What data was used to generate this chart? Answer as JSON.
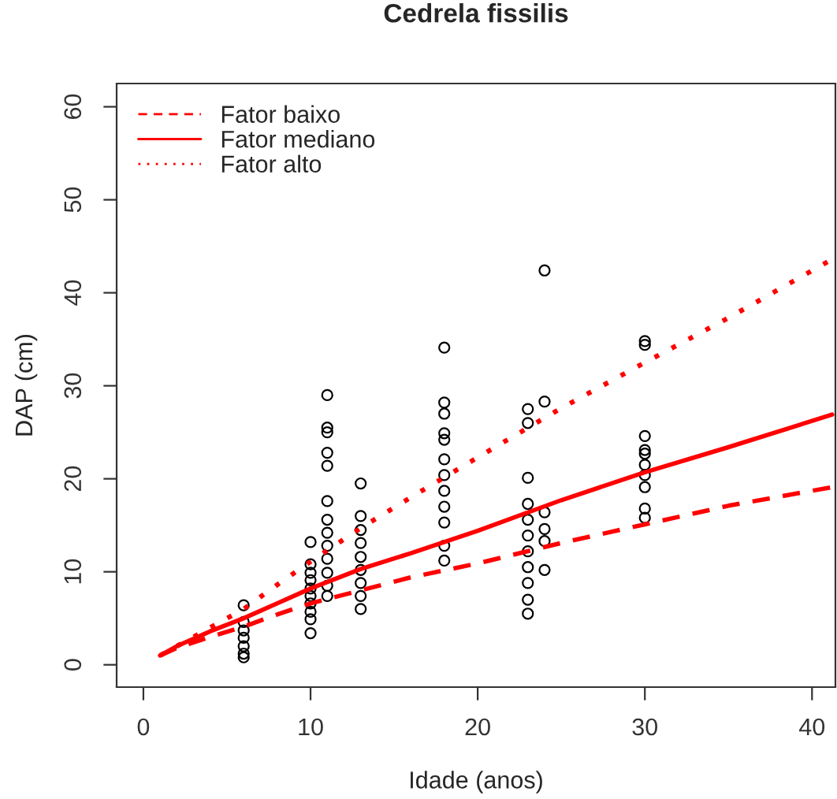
{
  "chart_data": {
    "type": "scatter",
    "title": "Cedrela fissilis",
    "xlabel": "Idade (anos)",
    "ylabel": "DAP (cm)",
    "xlim": [
      -1.6,
      41.4
    ],
    "ylim": [
      -2.4,
      62.5
    ],
    "xticks": [
      0,
      10,
      20,
      30,
      40
    ],
    "yticks": [
      0,
      10,
      20,
      30,
      40,
      50,
      60
    ],
    "grid": false,
    "legend": "top left",
    "marker": "circle",
    "series": [
      {
        "color": "#000000",
        "x": [
          6,
          6,
          6,
          6,
          6,
          6,
          6,
          10,
          10,
          10,
          10,
          10,
          10,
          10,
          10,
          10,
          10,
          11,
          11,
          11,
          11,
          11,
          11,
          11,
          11,
          11,
          11,
          11,
          11,
          11,
          13,
          13,
          13,
          13,
          13,
          13,
          13,
          13,
          13,
          18,
          18,
          18,
          18,
          18,
          18,
          18,
          18,
          18,
          18,
          18,
          18,
          23,
          23,
          23,
          23,
          23,
          23,
          23,
          23,
          23,
          23,
          23,
          24,
          24,
          24,
          24,
          24,
          24,
          30,
          30,
          30,
          30,
          30,
          30,
          30,
          30,
          30,
          30
        ],
        "values": [
          6.4,
          4.6,
          3.7,
          2.9,
          2.0,
          1.2,
          0.8,
          13.2,
          10.8,
          9.9,
          9.1,
          8.2,
          7.4,
          6.6,
          5.7,
          4.9,
          3.4,
          29.0,
          25.5,
          25.0,
          22.8,
          21.4,
          17.6,
          15.6,
          14.2,
          12.8,
          11.4,
          9.9,
          8.5,
          7.4,
          19.5,
          16.0,
          14.5,
          13.1,
          11.6,
          10.2,
          8.8,
          7.4,
          6.0,
          34.1,
          28.2,
          27.0,
          24.9,
          24.2,
          22.1,
          20.4,
          18.7,
          17.0,
          15.3,
          12.8,
          11.2,
          27.5,
          26.0,
          20.1,
          17.3,
          15.6,
          13.9,
          12.2,
          10.5,
          8.8,
          7.0,
          5.5,
          42.4,
          28.3,
          16.4,
          14.6,
          13.3,
          10.2,
          34.8,
          34.4,
          24.6,
          23.1,
          22.7,
          21.5,
          20.4,
          19.1,
          16.8,
          15.8
        ]
      },
      {
        "type": "line",
        "name": "Fator baixo",
        "color": "#ff0000",
        "line_style": "dashed",
        "marker": "none",
        "x": [
          1,
          2,
          4,
          6,
          8,
          10,
          13,
          16,
          20,
          25,
          30,
          35,
          41.2
        ],
        "values": [
          1.0,
          1.8,
          3.0,
          4.1,
          5.4,
          6.6,
          8.0,
          9.4,
          10.9,
          13.1,
          15.1,
          17.1,
          19.1
        ]
      },
      {
        "type": "line",
        "name": "Fator mediano",
        "color": "#ff0000",
        "line_style": "solid",
        "marker": "none",
        "x": [
          1,
          2,
          4,
          6,
          8,
          10,
          13,
          16,
          20,
          25,
          30,
          35,
          41.2
        ],
        "values": [
          1.0,
          2.0,
          3.6,
          5.0,
          6.6,
          8.2,
          10.3,
          12.0,
          14.4,
          17.7,
          20.7,
          23.4,
          26.9
        ]
      },
      {
        "type": "line",
        "name": "Fator alto",
        "color": "#ff0000",
        "line_style": "dotted",
        "marker": "none",
        "x": [
          1,
          2,
          4,
          6,
          8,
          10,
          13,
          16,
          20,
          25,
          30,
          35,
          41.2
        ],
        "values": [
          1.0,
          2.0,
          4.0,
          6.0,
          8.6,
          11.1,
          14.7,
          18.0,
          22.3,
          27.6,
          32.5,
          37.3,
          43.6
        ]
      }
    ]
  }
}
